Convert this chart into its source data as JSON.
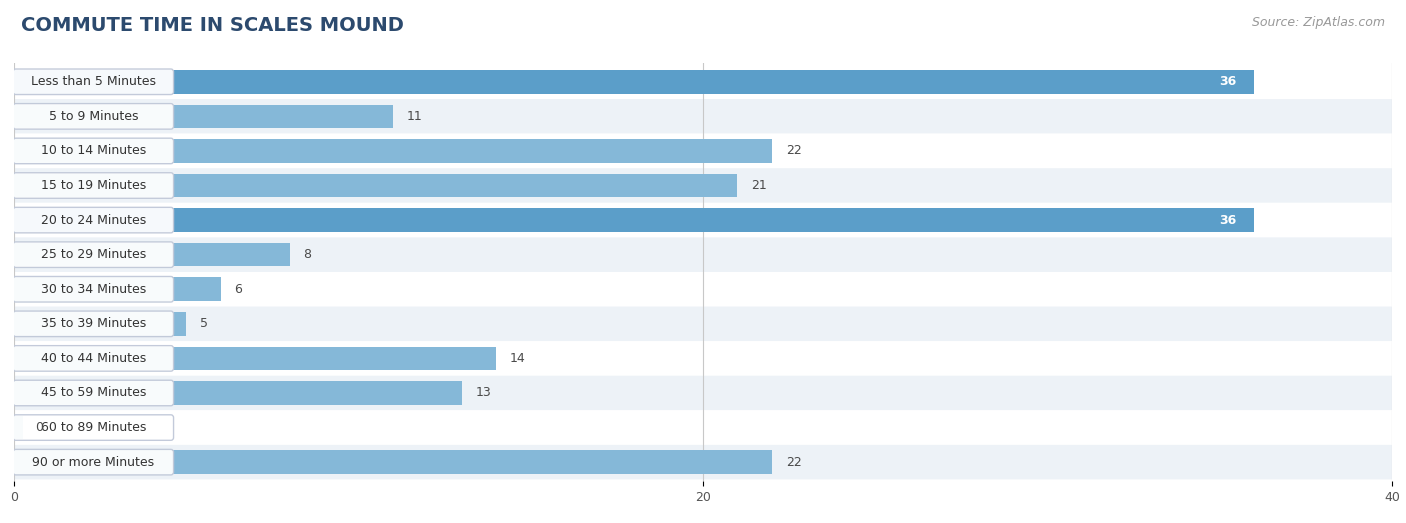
{
  "title": "COMMUTE TIME IN SCALES MOUND",
  "source": "Source: ZipAtlas.com",
  "categories": [
    "Less than 5 Minutes",
    "5 to 9 Minutes",
    "10 to 14 Minutes",
    "15 to 19 Minutes",
    "20 to 24 Minutes",
    "25 to 29 Minutes",
    "30 to 34 Minutes",
    "35 to 39 Minutes",
    "40 to 44 Minutes",
    "45 to 59 Minutes",
    "60 to 89 Minutes",
    "90 or more Minutes"
  ],
  "values": [
    36,
    11,
    22,
    21,
    36,
    8,
    6,
    5,
    14,
    13,
    0,
    22
  ],
  "xlim": [
    0,
    40
  ],
  "xticks": [
    0,
    20,
    40
  ],
  "bar_color_light": "#85b8d8",
  "bar_color_dark": "#5b9ec9",
  "highlight_indices": [
    0,
    4
  ],
  "label_color_inside": "#ffffff",
  "label_color_outside": "#4a4a4a",
  "background_color": "#ffffff",
  "row_bg_even": "#ffffff",
  "row_bg_odd": "#edf2f7",
  "grid_color": "#c8c8c8",
  "title_fontsize": 14,
  "source_fontsize": 9,
  "bar_label_fontsize": 9,
  "category_fontsize": 9,
  "pill_bg": "#ffffff",
  "pill_border": "#c0c8d8"
}
